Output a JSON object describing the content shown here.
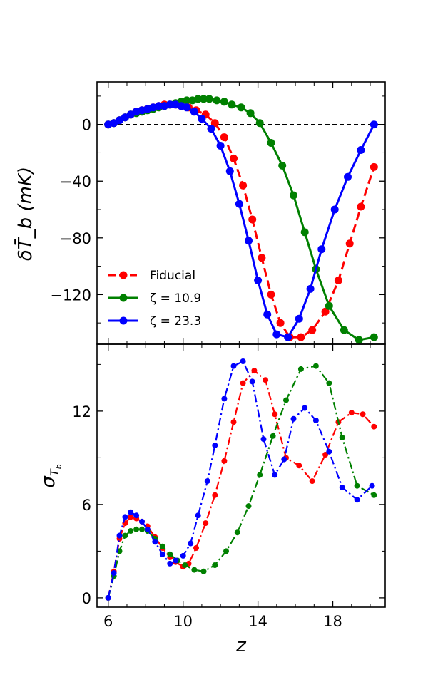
{
  "chart_data": [
    {
      "type": "line",
      "panel": "top",
      "ylabel": "δT̄_b (mK)",
      "xlabel": "",
      "xlim": [
        5.4,
        20.8
      ],
      "ylim": [
        -155,
        30
      ],
      "yticks": [
        0,
        -40,
        -80,
        -120
      ],
      "ytick_labels": [
        "0",
        "−40",
        "−80",
        "−120"
      ],
      "xticks": [
        6,
        10,
        14,
        18
      ],
      "reference_line": {
        "y": 0,
        "style": "dashed"
      },
      "legend": {
        "position": "lower-left"
      },
      "series": [
        {
          "name": "Fiducial",
          "color": "#ff0000",
          "linestyle": "dashed",
          "x": [
            6.0,
            6.3,
            6.6,
            6.9,
            7.2,
            7.5,
            7.8,
            8.1,
            8.4,
            8.7,
            9.0,
            9.3,
            9.6,
            9.9,
            10.3,
            10.7,
            11.2,
            11.7,
            12.2,
            12.7,
            13.2,
            13.7,
            14.2,
            14.7,
            15.2,
            15.7,
            16.3,
            16.9,
            17.6,
            18.3,
            18.9,
            19.5,
            20.2
          ],
          "y": [
            0,
            1,
            3,
            5,
            7,
            9,
            10,
            11,
            12,
            13,
            14,
            14,
            14,
            13,
            12,
            10,
            7,
            1,
            -9,
            -24,
            -43,
            -67,
            -94,
            -120,
            -140,
            -150,
            -150,
            -145,
            -132,
            -110,
            -84,
            -58,
            -30
          ]
        },
        {
          "name": "ζ = 10.9",
          "label_prefix": "ζ",
          "label_value": "= 10.9",
          "color": "#008000",
          "linestyle": "solid",
          "x": [
            6.0,
            6.3,
            6.6,
            6.9,
            7.2,
            7.5,
            7.8,
            8.1,
            8.4,
            8.7,
            9.0,
            9.3,
            9.6,
            9.9,
            10.2,
            10.5,
            10.8,
            11.1,
            11.4,
            11.8,
            12.2,
            12.6,
            13.1,
            13.6,
            14.1,
            14.7,
            15.3,
            15.9,
            16.5,
            17.1,
            17.8,
            18.6,
            19.4,
            20.2
          ],
          "y": [
            0,
            1,
            3,
            5,
            7,
            8,
            9,
            10,
            11,
            12,
            13,
            14,
            15,
            16,
            17,
            17,
            18,
            18,
            18,
            17,
            16,
            14,
            12,
            8,
            1,
            -13,
            -29,
            -50,
            -76,
            -102,
            -128,
            -145,
            -152,
            -150
          ]
        },
        {
          "name": "ζ = 23.3",
          "label_prefix": "ζ",
          "label_value": "= 23.3",
          "color": "#0000ff",
          "linestyle": "solid",
          "x": [
            6.0,
            6.3,
            6.6,
            6.9,
            7.2,
            7.5,
            7.8,
            8.1,
            8.4,
            8.7,
            9.0,
            9.3,
            9.6,
            9.9,
            10.2,
            10.6,
            11.0,
            11.5,
            12.0,
            12.5,
            13.0,
            13.5,
            14.0,
            14.5,
            15.0,
            15.6,
            16.2,
            16.8,
            17.4,
            18.1,
            18.8,
            19.5,
            20.2
          ],
          "y": [
            0,
            1,
            3,
            5,
            7,
            9,
            10,
            11,
            12,
            13,
            13,
            14,
            14,
            13,
            12,
            9,
            4,
            -3,
            -15,
            -33,
            -56,
            -82,
            -110,
            -134,
            -148,
            -150,
            -137,
            -116,
            -88,
            -60,
            -37,
            -18,
            0
          ]
        }
      ]
    },
    {
      "type": "line",
      "panel": "bottom",
      "ylabel": "σ_Tb",
      "xlabel": "z",
      "xlim": [
        5.4,
        20.8
      ],
      "ylim": [
        -0.6,
        16.3
      ],
      "yticks": [
        0,
        6,
        12
      ],
      "ytick_labels": [
        "0",
        "6",
        "12"
      ],
      "xticks": [
        6,
        10,
        14,
        18
      ],
      "xtick_labels": [
        "6",
        "10",
        "14",
        "18"
      ],
      "series": [
        {
          "name": "Fiducial",
          "color": "#ff0000",
          "linestyle": "dashdot",
          "x": [
            6.0,
            6.3,
            6.6,
            6.9,
            7.2,
            7.5,
            7.8,
            8.1,
            8.5,
            8.9,
            9.3,
            9.6,
            10.0,
            10.3,
            10.7,
            11.2,
            11.7,
            12.2,
            12.7,
            13.2,
            13.8,
            14.4,
            14.9,
            15.5,
            16.2,
            16.9,
            17.6,
            18.3,
            19.0,
            19.6,
            20.2
          ],
          "y": [
            0,
            1.7,
            3.8,
            4.8,
            5.2,
            5.1,
            4.9,
            4.6,
            3.9,
            3.2,
            2.6,
            2.3,
            2.0,
            2.2,
            3.2,
            4.8,
            6.6,
            8.8,
            11.3,
            13.8,
            14.6,
            14.0,
            11.8,
            9.0,
            8.5,
            7.5,
            9.2,
            11.3,
            11.9,
            11.8,
            11.0
          ]
        },
        {
          "name": "ζ = 10.9",
          "color": "#008000",
          "linestyle": "dashdot",
          "x": [
            6.0,
            6.3,
            6.6,
            6.9,
            7.2,
            7.5,
            7.8,
            8.1,
            8.5,
            8.9,
            9.3,
            9.7,
            10.1,
            10.6,
            11.1,
            11.7,
            12.3,
            12.9,
            13.5,
            14.1,
            14.8,
            15.5,
            16.3,
            17.1,
            17.8,
            18.5,
            19.3,
            20.2
          ],
          "y": [
            0,
            1.4,
            3.0,
            4.0,
            4.3,
            4.4,
            4.4,
            4.3,
            3.8,
            3.3,
            2.8,
            2.4,
            2.1,
            1.8,
            1.7,
            2.1,
            3.0,
            4.2,
            5.9,
            7.9,
            10.4,
            12.7,
            14.7,
            14.9,
            13.8,
            10.3,
            7.2,
            6.6
          ]
        },
        {
          "name": "ζ = 23.3",
          "color": "#0000ff",
          "linestyle": "dashdot",
          "x": [
            6.0,
            6.3,
            6.6,
            6.9,
            7.2,
            7.5,
            7.8,
            8.1,
            8.5,
            8.9,
            9.3,
            9.6,
            10.0,
            10.4,
            10.8,
            11.3,
            11.7,
            12.2,
            12.7,
            13.2,
            13.7,
            14.3,
            14.9,
            15.4,
            15.9,
            16.5,
            17.1,
            17.8,
            18.5,
            19.3,
            20.1
          ],
          "y": [
            0,
            1.6,
            4.0,
            5.2,
            5.5,
            5.3,
            4.9,
            4.4,
            3.6,
            2.8,
            2.2,
            2.4,
            2.7,
            3.5,
            5.3,
            7.5,
            9.8,
            12.8,
            14.9,
            15.2,
            13.9,
            10.2,
            7.9,
            8.9,
            11.5,
            12.2,
            11.4,
            9.4,
            7.1,
            6.3,
            7.2
          ]
        }
      ]
    }
  ]
}
